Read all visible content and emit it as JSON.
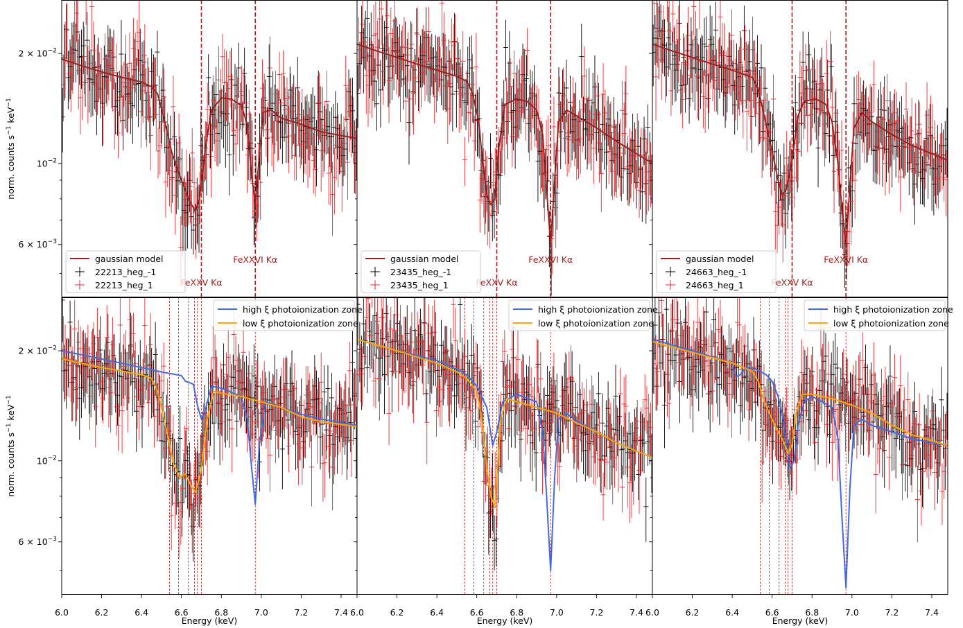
{
  "colors": {
    "gaussian": "#a01e1e",
    "high_xi": "#4169e1",
    "low_xi": "#ffa500",
    "data_black": "#000000",
    "data_red": "#e8282c",
    "vline": "#a01e1e"
  },
  "chart_data": {
    "type": "scatter",
    "layout": "2x3 grid, shared axes",
    "xlabel": "Energy (keV)",
    "ylabel_parts": [
      "norm. counts s",
      "−1",
      " keV",
      "−1"
    ],
    "xlim": [
      6.0,
      7.48
    ],
    "ylim": [
      0.0043,
      0.028
    ],
    "yscale": "log",
    "xticks": [
      "6.0",
      "6.2",
      "6.4",
      "6.6",
      "6.8",
      "7.0",
      "7.2",
      "7.4"
    ],
    "yticks": [
      {
        "value": 0.02,
        "mantissa": "2 × 10",
        "exp": "−2"
      },
      {
        "value": 0.01,
        "mantissa": "10",
        "exp": "−2"
      },
      {
        "value": 0.006,
        "mantissa": "6 × 10",
        "exp": "−3"
      }
    ],
    "line_annotations": [
      {
        "label": "FeXXV Kα",
        "energy": 6.7
      },
      {
        "label": "FeXXVI Kα",
        "energy": 6.97
      }
    ],
    "bottom_vlines": [
      6.54,
      6.585,
      6.635,
      6.665,
      6.68,
      6.7,
      6.97
    ],
    "top_legend": {
      "model": "gaussian model",
      "obs_ids": [
        "22213",
        "23435",
        "24663"
      ],
      "minus_suffix": "_heg_-1",
      "plus_suffix": "_heg_1"
    },
    "bottom_legend": {
      "high": "high ξ photoionization zone",
      "low": "low ξ photoionization zone"
    },
    "panels": [
      {
        "obs": "22213",
        "gaussian": [
          [
            6.0,
            0.0193
          ],
          [
            6.1,
            0.0185
          ],
          [
            6.2,
            0.0178
          ],
          [
            6.3,
            0.0172
          ],
          [
            6.4,
            0.0167
          ],
          [
            6.45,
            0.0162
          ],
          [
            6.48,
            0.0155
          ],
          [
            6.51,
            0.0135
          ],
          [
            6.55,
            0.0108
          ],
          [
            6.6,
            0.009
          ],
          [
            6.64,
            0.0079
          ],
          [
            6.67,
            0.0074
          ],
          [
            6.69,
            0.008
          ],
          [
            6.72,
            0.011
          ],
          [
            6.75,
            0.014
          ],
          [
            6.8,
            0.0151
          ],
          [
            6.85,
            0.015
          ],
          [
            6.9,
            0.0144
          ],
          [
            6.93,
            0.0128
          ],
          [
            6.95,
            0.0095
          ],
          [
            6.97,
            0.0077
          ],
          [
            6.99,
            0.0105
          ],
          [
            7.01,
            0.0138
          ],
          [
            7.05,
            0.014
          ],
          [
            7.1,
            0.0133
          ],
          [
            7.2,
            0.0128
          ],
          [
            7.3,
            0.0122
          ],
          [
            7.48,
            0.0117
          ]
        ],
        "high": [
          [
            6.0,
            0.02
          ],
          [
            6.2,
            0.019
          ],
          [
            6.4,
            0.018
          ],
          [
            6.5,
            0.0175
          ],
          [
            6.6,
            0.0171
          ],
          [
            6.62,
            0.0165
          ],
          [
            6.66,
            0.0162
          ],
          [
            6.68,
            0.0142
          ],
          [
            6.7,
            0.013
          ],
          [
            6.72,
            0.0138
          ],
          [
            6.75,
            0.016
          ],
          [
            6.8,
            0.0158
          ],
          [
            6.9,
            0.015
          ],
          [
            6.93,
            0.013
          ],
          [
            6.95,
            0.0098
          ],
          [
            6.97,
            0.0076
          ],
          [
            6.99,
            0.011
          ],
          [
            7.02,
            0.0145
          ],
          [
            7.1,
            0.014
          ],
          [
            7.2,
            0.0134
          ],
          [
            7.3,
            0.013
          ],
          [
            7.48,
            0.0125
          ]
        ],
        "low": [
          [
            6.0,
            0.019
          ],
          [
            6.2,
            0.018
          ],
          [
            6.4,
            0.0172
          ],
          [
            6.45,
            0.0168
          ],
          [
            6.48,
            0.0155
          ],
          [
            6.5,
            0.014
          ],
          [
            6.54,
            0.0112
          ],
          [
            6.56,
            0.0098
          ],
          [
            6.59,
            0.009
          ],
          [
            6.62,
            0.0092
          ],
          [
            6.65,
            0.0085
          ],
          [
            6.67,
            0.0082
          ],
          [
            6.7,
            0.0095
          ],
          [
            6.73,
            0.013
          ],
          [
            6.76,
            0.0155
          ],
          [
            6.8,
            0.0153
          ],
          [
            6.9,
            0.015
          ],
          [
            7.0,
            0.0145
          ],
          [
            7.1,
            0.014
          ],
          [
            7.2,
            0.0132
          ],
          [
            7.3,
            0.0128
          ],
          [
            7.48,
            0.0124
          ]
        ]
      },
      {
        "obs": "23435",
        "gaussian": [
          [
            6.0,
            0.0212
          ],
          [
            6.1,
            0.0203
          ],
          [
            6.2,
            0.0195
          ],
          [
            6.3,
            0.0187
          ],
          [
            6.4,
            0.018
          ],
          [
            6.5,
            0.0173
          ],
          [
            6.55,
            0.0168
          ],
          [
            6.58,
            0.0155
          ],
          [
            6.61,
            0.013
          ],
          [
            6.63,
            0.01
          ],
          [
            6.65,
            0.0082
          ],
          [
            6.67,
            0.0077
          ],
          [
            6.69,
            0.008
          ],
          [
            6.71,
            0.011
          ],
          [
            6.74,
            0.0145
          ],
          [
            6.8,
            0.015
          ],
          [
            6.85,
            0.0148
          ],
          [
            6.9,
            0.014
          ],
          [
            6.93,
            0.012
          ],
          [
            6.95,
            0.0085
          ],
          [
            6.97,
            0.006
          ],
          [
            6.99,
            0.009
          ],
          [
            7.01,
            0.013
          ],
          [
            7.05,
            0.014
          ],
          [
            7.1,
            0.0135
          ],
          [
            7.2,
            0.0125
          ],
          [
            7.3,
            0.0115
          ],
          [
            7.48,
            0.01
          ]
        ],
        "high": [
          [
            6.0,
            0.0215
          ],
          [
            6.2,
            0.02
          ],
          [
            6.4,
            0.0188
          ],
          [
            6.5,
            0.0178
          ],
          [
            6.55,
            0.0172
          ],
          [
            6.6,
            0.016
          ],
          [
            6.65,
            0.014
          ],
          [
            6.68,
            0.011
          ],
          [
            6.7,
            0.012
          ],
          [
            6.73,
            0.0145
          ],
          [
            6.8,
            0.0152
          ],
          [
            6.9,
            0.0145
          ],
          [
            6.93,
            0.012
          ],
          [
            6.95,
            0.008
          ],
          [
            6.97,
            0.005
          ],
          [
            6.99,
            0.009
          ],
          [
            7.01,
            0.013
          ],
          [
            7.05,
            0.0135
          ],
          [
            7.1,
            0.0128
          ],
          [
            7.2,
            0.012
          ],
          [
            7.3,
            0.0112
          ],
          [
            7.48,
            0.0102
          ]
        ],
        "low": [
          [
            6.0,
            0.0215
          ],
          [
            6.2,
            0.02
          ],
          [
            6.4,
            0.0185
          ],
          [
            6.5,
            0.0175
          ],
          [
            6.55,
            0.0168
          ],
          [
            6.6,
            0.0155
          ],
          [
            6.63,
            0.0125
          ],
          [
            6.65,
            0.0095
          ],
          [
            6.67,
            0.008
          ],
          [
            6.69,
            0.0075
          ],
          [
            6.7,
            0.009
          ],
          [
            6.72,
            0.013
          ],
          [
            6.75,
            0.0148
          ],
          [
            6.8,
            0.0145
          ],
          [
            6.9,
            0.014
          ],
          [
            7.0,
            0.0135
          ],
          [
            7.1,
            0.0127
          ],
          [
            7.2,
            0.012
          ],
          [
            7.3,
            0.0112
          ],
          [
            7.48,
            0.0102
          ]
        ]
      },
      {
        "obs": "24663",
        "gaussian": [
          [
            6.0,
            0.0212
          ],
          [
            6.1,
            0.0203
          ],
          [
            6.2,
            0.0195
          ],
          [
            6.3,
            0.0187
          ],
          [
            6.4,
            0.018
          ],
          [
            6.5,
            0.0172
          ],
          [
            6.53,
            0.016
          ],
          [
            6.56,
            0.0135
          ],
          [
            6.6,
            0.0108
          ],
          [
            6.63,
            0.009
          ],
          [
            6.65,
            0.0082
          ],
          [
            6.67,
            0.0085
          ],
          [
            6.7,
            0.0102
          ],
          [
            6.73,
            0.0135
          ],
          [
            6.76,
            0.0148
          ],
          [
            6.82,
            0.015
          ],
          [
            6.87,
            0.0145
          ],
          [
            6.9,
            0.013
          ],
          [
            6.93,
            0.01
          ],
          [
            6.95,
            0.0075
          ],
          [
            6.97,
            0.006
          ],
          [
            6.99,
            0.0088
          ],
          [
            7.01,
            0.0125
          ],
          [
            7.05,
            0.0138
          ],
          [
            7.1,
            0.013
          ],
          [
            7.2,
            0.012
          ],
          [
            7.3,
            0.0112
          ],
          [
            7.48,
            0.0102
          ]
        ],
        "high": [
          [
            6.0,
            0.0215
          ],
          [
            6.2,
            0.02
          ],
          [
            6.4,
            0.0185
          ],
          [
            6.42,
            0.017
          ],
          [
            6.44,
            0.0172
          ],
          [
            6.47,
            0.018
          ],
          [
            6.52,
            0.0178
          ],
          [
            6.57,
            0.0172
          ],
          [
            6.6,
            0.0165
          ],
          [
            6.63,
            0.015
          ],
          [
            6.66,
            0.0125
          ],
          [
            6.69,
            0.0095
          ],
          [
            6.71,
            0.01
          ],
          [
            6.73,
            0.0125
          ],
          [
            6.76,
            0.0145
          ],
          [
            6.8,
            0.015
          ],
          [
            6.9,
            0.014
          ],
          [
            6.93,
            0.0115
          ],
          [
            6.95,
            0.007
          ],
          [
            6.97,
            0.0045
          ],
          [
            6.99,
            0.0085
          ],
          [
            7.01,
            0.0125
          ],
          [
            7.05,
            0.013
          ],
          [
            7.1,
            0.0125
          ],
          [
            7.2,
            0.012
          ],
          [
            7.3,
            0.0115
          ],
          [
            7.48,
            0.011
          ]
        ],
        "low": [
          [
            6.0,
            0.0212
          ],
          [
            6.2,
            0.0198
          ],
          [
            6.4,
            0.0185
          ],
          [
            6.5,
            0.0176
          ],
          [
            6.53,
            0.0165
          ],
          [
            6.56,
            0.0145
          ],
          [
            6.6,
            0.013
          ],
          [
            6.63,
            0.012
          ],
          [
            6.66,
            0.0112
          ],
          [
            6.68,
            0.0105
          ],
          [
            6.7,
            0.011
          ],
          [
            6.72,
            0.0135
          ],
          [
            6.75,
            0.0152
          ],
          [
            6.8,
            0.0152
          ],
          [
            6.9,
            0.0148
          ],
          [
            7.0,
            0.0142
          ],
          [
            7.1,
            0.0135
          ],
          [
            7.2,
            0.0125
          ],
          [
            7.3,
            0.0118
          ],
          [
            7.48,
            0.011
          ]
        ]
      }
    ]
  }
}
